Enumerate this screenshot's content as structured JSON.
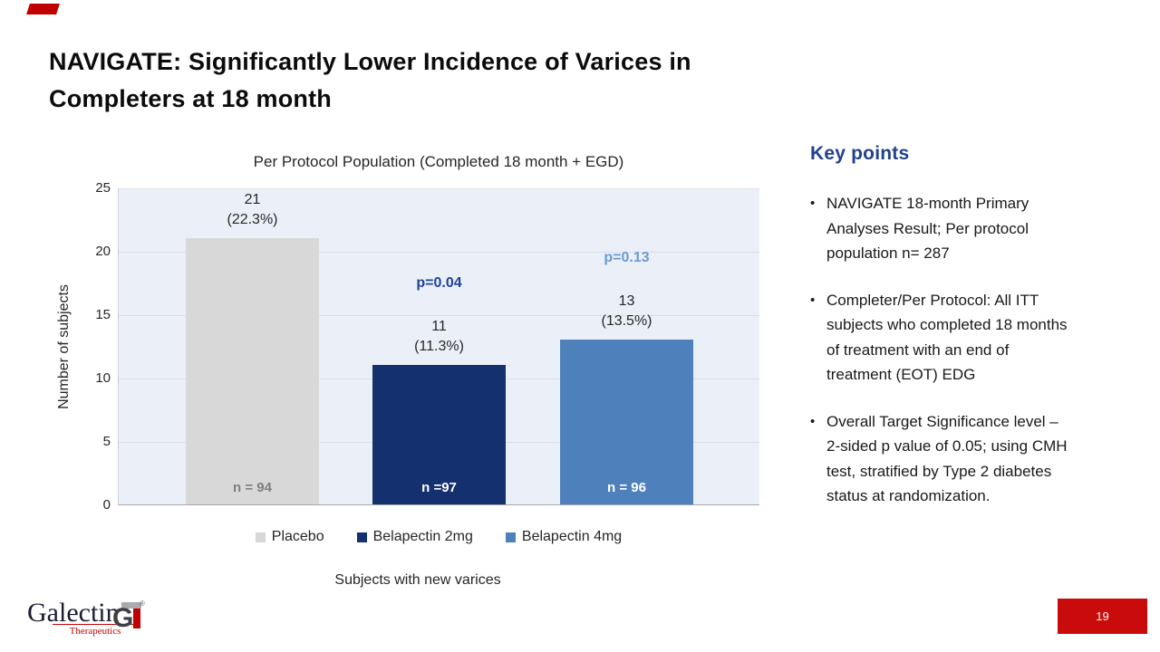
{
  "slide": {
    "title_line1": "NAVIGATE: Significantly Lower Incidence of Varices in",
    "title_line2": "Completers at 18 month",
    "page_number": "19"
  },
  "chart_data": {
    "type": "bar",
    "title": "Per Protocol Population (Completed 18 month + EGD)",
    "xlabel": "Subjects with new varices",
    "ylabel": "Number of subjects",
    "ylim": [
      0,
      25
    ],
    "yticks": [
      "25",
      "20",
      "15",
      "10",
      "5",
      "0"
    ],
    "grid": true,
    "legend_position": "bottom",
    "plot_bg": "#EBF0F8",
    "categories": [
      "Placebo",
      "Belapectin 2mg",
      "Belapectin 4mg"
    ],
    "series": [
      {
        "name": "Subjects with new varices",
        "values": [
          21,
          11,
          13
        ]
      }
    ],
    "bars": [
      {
        "category": "Placebo",
        "value": 21,
        "value_label": "21",
        "pct_label": "(22.3%)",
        "n_label": "n = 94",
        "p_label": "",
        "color": "#D8D8D8",
        "p_color": "",
        "n_color": "#7F7F7F"
      },
      {
        "category": "Belapectin 2mg",
        "value": 11,
        "value_label": "11",
        "pct_label": "(11.3%)",
        "n_label": "n =97",
        "p_label": "p=0.04",
        "color": "#15306E",
        "p_color": "#1F4296",
        "n_color": "#FFFFFF"
      },
      {
        "category": "Belapectin 4mg",
        "value": 13,
        "value_label": "13",
        "pct_label": "(13.5%)",
        "n_label": "n = 96",
        "p_label": "p=0.13",
        "color": "#4E81BC",
        "p_color": "#6D9AD1",
        "n_color": "#FFFFFF"
      }
    ],
    "legend": [
      {
        "label": "Placebo",
        "color": "#D8D8D8"
      },
      {
        "label": "Belapectin 2mg",
        "color": "#15306E"
      },
      {
        "label": "Belapectin 4mg",
        "color": "#4E81BC"
      }
    ]
  },
  "key_points": {
    "header": "Key points",
    "bullet_char": "•",
    "bullets": [
      "NAVIGATE 18-month Primary Analyses Result; Per protocol population n= 287",
      "Completer/Per Protocol: All ITT subjects who completed 18 months of treatment with an end of treatment (EOT) EDG",
      "Overall Target Significance level – 2-sided p value of 0.05; using CMH test, stratified by Type 2 diabetes status at randomization."
    ]
  },
  "logo": {
    "name": "Galectin",
    "subtitle": "Therapeutics",
    "monogram_g": "G",
    "registered": "®"
  },
  "colors": {
    "accent_red": "#C00000",
    "page_box_red": "#C90B0B",
    "keypoints_header_blue": "#21418C",
    "p_dark_blue": "#1F4296",
    "p_light_blue": "#6D9AD1"
  }
}
